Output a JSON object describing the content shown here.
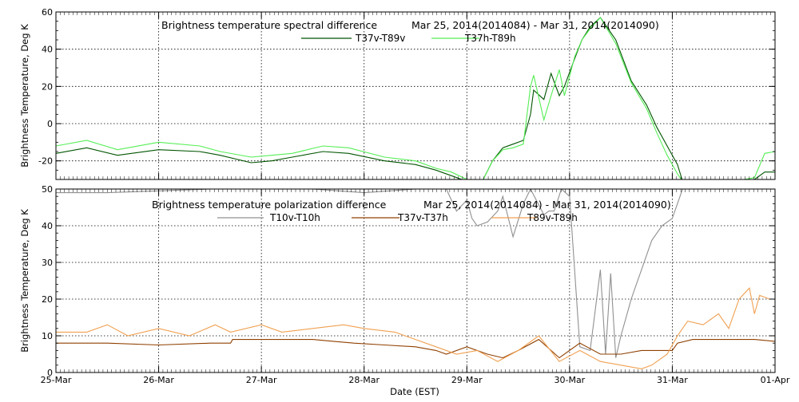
{
  "x_axis_title": "Date (EST)",
  "x_ticks": [
    "25-Mar",
    "26-Mar",
    "27-Mar",
    "28-Mar",
    "29-Mar",
    "30-Mar",
    "31-Mar",
    "01-Apr"
  ],
  "chart_data": [
    {
      "type": "line",
      "title": "Brightness temperature spectral difference",
      "subtitle": "Mar 25, 2014(2014084) - Mar 31, 2014(2014090)",
      "xlabel": "",
      "ylabel": "Brightness Temperature, Deg K",
      "xlim": [
        0,
        7
      ],
      "ylim": [
        -30,
        60
      ],
      "yticks": [
        -20,
        0,
        20,
        40,
        60
      ],
      "grid": true,
      "legend_position": "top-center",
      "series": [
        {
          "name": "T37v-T89v",
          "color": "#005500",
          "x": [
            0,
            0.3,
            0.6,
            1.0,
            1.4,
            1.6,
            1.9,
            2.1,
            2.3,
            2.6,
            2.85,
            3.2,
            3.5,
            3.7,
            3.85,
            4.0,
            4.15,
            4.25,
            4.35,
            4.45,
            4.55,
            4.62,
            4.65,
            4.75,
            4.82,
            4.9,
            4.95,
            5.05,
            5.12,
            5.2,
            5.3,
            5.45,
            5.6,
            5.75,
            5.85,
            5.95,
            6.05,
            6.1,
            6.4,
            6.6,
            6.8,
            6.9,
            7.0
          ],
          "values": [
            -16,
            -13,
            -17,
            -14,
            -15,
            -17,
            -21,
            -20,
            -18,
            -15,
            -16,
            -20,
            -22,
            -25,
            -28,
            -31,
            -31,
            -20,
            -13,
            -11,
            -9,
            5,
            18,
            13,
            27,
            15,
            20,
            35,
            45,
            52,
            57,
            45,
            23,
            10,
            -2,
            -12,
            -22,
            -31,
            -31,
            -30,
            -30,
            -26,
            -26
          ]
        },
        {
          "name": "T37h-T89h",
          "color": "#55ee55",
          "x": [
            0,
            0.3,
            0.6,
            1.0,
            1.4,
            1.6,
            1.9,
            2.1,
            2.3,
            2.6,
            2.85,
            3.2,
            3.5,
            3.7,
            3.85,
            4.0,
            4.15,
            4.25,
            4.35,
            4.45,
            4.55,
            4.62,
            4.65,
            4.75,
            4.82,
            4.9,
            4.95,
            5.05,
            5.12,
            5.2,
            5.3,
            5.45,
            5.6,
            5.75,
            5.85,
            5.95,
            6.05,
            6.1,
            6.4,
            6.6,
            6.8,
            6.9,
            7.0
          ],
          "values": [
            -12,
            -9,
            -14,
            -10,
            -12,
            -15,
            -18,
            -17,
            -16,
            -12,
            -13,
            -18,
            -20,
            -24,
            -26,
            -30,
            -31,
            -20,
            -14,
            -13,
            -11,
            20,
            26,
            2,
            15,
            29,
            15,
            36,
            45,
            51,
            57,
            43,
            22,
            8,
            -5,
            -17,
            -27,
            -31,
            -30,
            -31,
            -29,
            -16,
            -15
          ]
        }
      ]
    },
    {
      "type": "line",
      "title": "Brightness temperature polarization difference",
      "subtitle": "Mar 25, 2014(2014084) - Mar 31, 2014(2014090)",
      "xlabel": "Date (EST)",
      "ylabel": "Brightness Temperature, Deg K",
      "xlim": [
        0,
        7
      ],
      "ylim": [
        0,
        50
      ],
      "yticks": [
        0,
        10,
        20,
        30,
        40,
        50
      ],
      "grid": true,
      "legend_position": "top-center",
      "series": [
        {
          "name": "T10v-T10h",
          "color": "#909090",
          "x": [
            0,
            0.5,
            1.0,
            1.5,
            2.0,
            2.5,
            3.0,
            3.5,
            3.8,
            3.9,
            4.0,
            4.05,
            4.1,
            4.2,
            4.3,
            4.35,
            4.45,
            4.55,
            4.62,
            4.75,
            4.8,
            4.85,
            4.92,
            5.0,
            5.1,
            5.2,
            5.3,
            5.35,
            5.4,
            5.45,
            5.5,
            5.55,
            5.6,
            5.65,
            5.7,
            5.75,
            5.8,
            5.9,
            6.0,
            6.1,
            6.2,
            6.3,
            6.5,
            6.8,
            7.0
          ],
          "values": [
            49,
            49,
            49.5,
            50,
            50,
            50,
            49,
            50,
            50,
            44,
            47,
            42,
            40,
            41,
            44,
            48,
            37,
            46,
            50,
            43,
            44,
            44,
            50,
            48,
            7,
            6,
            28,
            5,
            27,
            4,
            10,
            15,
            20,
            24,
            28,
            32,
            36,
            40,
            42,
            50,
            50,
            50,
            50,
            50,
            50
          ]
        },
        {
          "name": "T37v-T37h",
          "color": "#904000",
          "x": [
            0,
            0.5,
            1.0,
            1.5,
            1.7,
            1.72,
            2.0,
            2.5,
            2.7,
            2.9,
            3.2,
            3.5,
            3.7,
            3.8,
            4.0,
            4.2,
            4.35,
            4.5,
            4.7,
            4.9,
            5.1,
            5.3,
            5.5,
            5.7,
            5.9,
            6.0,
            6.05,
            6.2,
            6.4,
            6.6,
            6.8,
            7.0
          ],
          "values": [
            8,
            8,
            7.5,
            8,
            8,
            9,
            9,
            9,
            8.5,
            8,
            7.5,
            7,
            6,
            5,
            7,
            5,
            4,
            6,
            9,
            4,
            8,
            5,
            5,
            6,
            6,
            6,
            8,
            9,
            9,
            9,
            9,
            8.5
          ]
        },
        {
          "name": "T89v-T89h",
          "color": "#f0a050",
          "x": [
            0,
            0.3,
            0.5,
            0.7,
            1.0,
            1.3,
            1.55,
            1.7,
            2.0,
            2.2,
            2.5,
            2.8,
            3.0,
            3.3,
            3.5,
            3.7,
            3.9,
            4.1,
            4.3,
            4.5,
            4.7,
            4.9,
            5.1,
            5.3,
            5.5,
            5.7,
            5.8,
            5.95,
            6.05,
            6.15,
            6.3,
            6.45,
            6.55,
            6.65,
            6.75,
            6.8,
            6.85,
            6.95,
            7.0
          ],
          "values": [
            11,
            11,
            13,
            10,
            12,
            10,
            13,
            11,
            13,
            11,
            12,
            13,
            12,
            11,
            9,
            7,
            5,
            6,
            3,
            6,
            10,
            3,
            6,
            3,
            2,
            1,
            2,
            5,
            10,
            14,
            13,
            16,
            12,
            20,
            23,
            16,
            21,
            20,
            20
          ]
        }
      ]
    }
  ]
}
